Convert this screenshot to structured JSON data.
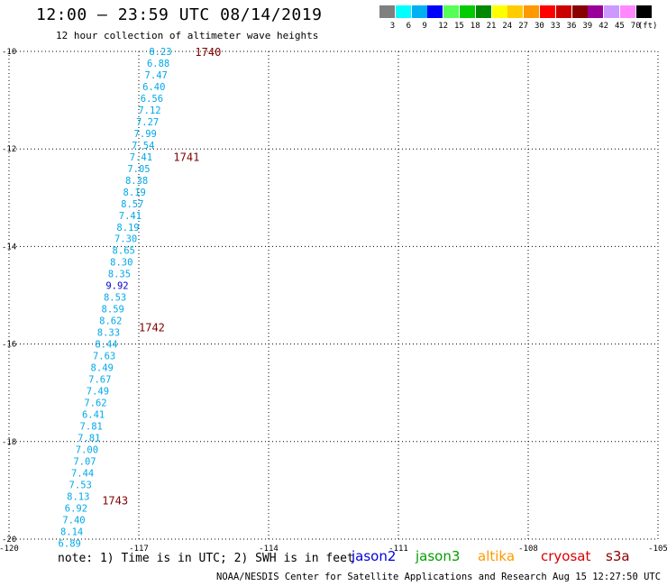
{
  "title": "12:00 – 23:59 UTC 08/14/2019",
  "subtitle": "12 hour collection of altimeter wave heights",
  "colorbar": {
    "unit": "(ft)",
    "swatches": [
      "#808080",
      "#00ffff",
      "#00b0f0",
      "#0000ff",
      "#55ff55",
      "#00cc00",
      "#008800",
      "#ffff00",
      "#ffcc00",
      "#ff9900",
      "#ff0000",
      "#cc0000",
      "#880000",
      "#990099",
      "#cc99ff",
      "#ff88ff",
      "#000000"
    ],
    "ticks": [
      "3",
      "6",
      "9",
      "12",
      "15",
      "18",
      "21",
      "24",
      "27",
      "30",
      "33",
      "36",
      "39",
      "42",
      "45",
      "70"
    ]
  },
  "map": {
    "lon_range": [
      -120,
      -105
    ],
    "lat_range": [
      -20,
      -10
    ],
    "x_ticks": [
      -120,
      -117,
      -114,
      -111,
      -108,
      -105
    ],
    "x_tick_labels": [
      "-120",
      "-117",
      "-114",
      "-111",
      "-108",
      "-105"
    ],
    "y_ticks": [
      -10,
      -12,
      -14,
      -16,
      -18,
      -20
    ],
    "y_tick_labels": [
      "-10",
      "-12",
      "-14",
      "-16",
      "-18",
      "-20"
    ],
    "grid": "dotted",
    "track_color": "#00a8e8",
    "highlight_color": "#0000cc",
    "time_color": "#800000"
  },
  "chart_data": {
    "type": "scatter",
    "xlabel": "",
    "ylabel": "",
    "xlim": [
      -120,
      -105
    ],
    "ylim": [
      -20,
      -10
    ],
    "swh_ft": [
      {
        "lon": -116.5,
        "lat": -10.0,
        "value": "8.23"
      },
      {
        "lon": -116.55,
        "lat": -10.24,
        "value": "6.88"
      },
      {
        "lon": -116.6,
        "lat": -10.48,
        "value": "7.47"
      },
      {
        "lon": -116.65,
        "lat": -10.72,
        "value": "6.40"
      },
      {
        "lon": -116.7,
        "lat": -10.96,
        "value": "6.56"
      },
      {
        "lon": -116.75,
        "lat": -11.2,
        "value": "7.12"
      },
      {
        "lon": -116.8,
        "lat": -11.44,
        "value": "7.27"
      },
      {
        "lon": -116.85,
        "lat": -11.68,
        "value": "7.99"
      },
      {
        "lon": -116.9,
        "lat": -11.92,
        "value": "7.54"
      },
      {
        "lon": -116.95,
        "lat": -12.16,
        "value": "7.41"
      },
      {
        "lon": -117.0,
        "lat": -12.4,
        "value": "7.05"
      },
      {
        "lon": -117.05,
        "lat": -12.64,
        "value": "8.38"
      },
      {
        "lon": -117.1,
        "lat": -12.88,
        "value": "8.19"
      },
      {
        "lon": -117.15,
        "lat": -13.12,
        "value": "8.57"
      },
      {
        "lon": -117.2,
        "lat": -13.36,
        "value": "7.41"
      },
      {
        "lon": -117.25,
        "lat": -13.6,
        "value": "8.19"
      },
      {
        "lon": -117.3,
        "lat": -13.84,
        "value": "7.30"
      },
      {
        "lon": -117.35,
        "lat": -14.08,
        "value": "8.65"
      },
      {
        "lon": -117.4,
        "lat": -14.32,
        "value": "8.30"
      },
      {
        "lon": -117.45,
        "lat": -14.56,
        "value": "8.35"
      },
      {
        "lon": -117.5,
        "lat": -14.8,
        "value": "9.92",
        "highlight": true
      },
      {
        "lon": -117.55,
        "lat": -15.04,
        "value": "8.53"
      },
      {
        "lon": -117.6,
        "lat": -15.28,
        "value": "8.59"
      },
      {
        "lon": -117.65,
        "lat": -15.52,
        "value": "8.62"
      },
      {
        "lon": -117.7,
        "lat": -15.76,
        "value": "8.33"
      },
      {
        "lon": -117.75,
        "lat": -16.0,
        "value": "8.44"
      },
      {
        "lon": -117.8,
        "lat": -16.24,
        "value": "7.63"
      },
      {
        "lon": -117.85,
        "lat": -16.48,
        "value": "8.49"
      },
      {
        "lon": -117.9,
        "lat": -16.72,
        "value": "7.67"
      },
      {
        "lon": -117.95,
        "lat": -16.96,
        "value": "7.49"
      },
      {
        "lon": -118.0,
        "lat": -17.2,
        "value": "7.62"
      },
      {
        "lon": -118.05,
        "lat": -17.44,
        "value": "6.41"
      },
      {
        "lon": -118.1,
        "lat": -17.68,
        "value": "7.81"
      },
      {
        "lon": -118.15,
        "lat": -17.92,
        "value": "7.81"
      },
      {
        "lon": -118.2,
        "lat": -18.16,
        "value": "7.00"
      },
      {
        "lon": -118.25,
        "lat": -18.4,
        "value": "7.07"
      },
      {
        "lon": -118.3,
        "lat": -18.64,
        "value": "7.44"
      },
      {
        "lon": -118.35,
        "lat": -18.88,
        "value": "7.53"
      },
      {
        "lon": -118.4,
        "lat": -19.12,
        "value": "8.13"
      },
      {
        "lon": -118.45,
        "lat": -19.36,
        "value": "6.92"
      },
      {
        "lon": -118.5,
        "lat": -19.6,
        "value": "7.40"
      },
      {
        "lon": -118.55,
        "lat": -19.84,
        "value": "8.14"
      },
      {
        "lon": -118.6,
        "lat": -20.08,
        "value": "6.89"
      }
    ],
    "time_labels": [
      {
        "lon": -115.7,
        "lat": -10.0,
        "text": "1740"
      },
      {
        "lon": -116.2,
        "lat": -12.15,
        "text": "1741"
      },
      {
        "lon": -117.0,
        "lat": -15.65,
        "text": "1742"
      },
      {
        "lon": -117.85,
        "lat": -19.2,
        "text": "1743"
      }
    ]
  },
  "footer": {
    "note": "note:  1) Time is in UTC;  2) SWH is in feet",
    "missions": [
      {
        "name": "jason2",
        "color": "#0000dd"
      },
      {
        "name": "jason3",
        "color": "#00a000"
      },
      {
        "name": "altika",
        "color": "#ff9900"
      },
      {
        "name": "cryosat",
        "color": "#dd0000"
      },
      {
        "name": "s3a",
        "color": "#880000"
      }
    ],
    "credit": "NOAA/NESDIS Center for Satellite Applications and Research    Aug 15 12:27:50 UTC 2019"
  }
}
